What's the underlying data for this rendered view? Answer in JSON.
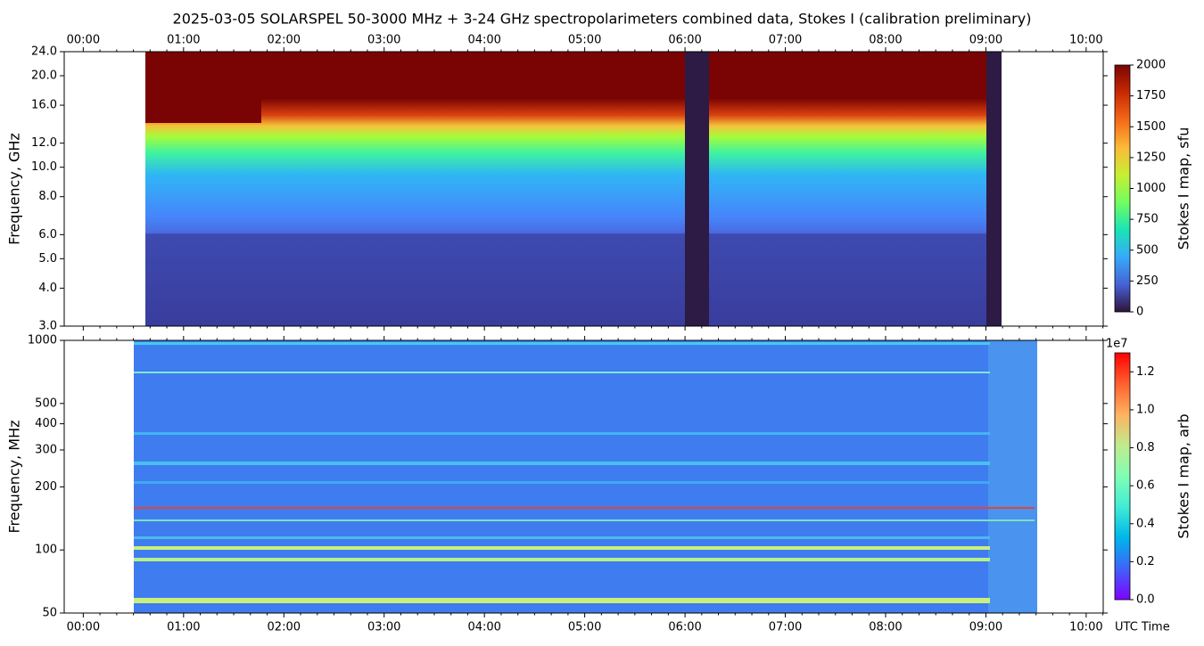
{
  "chart_data": [
    {
      "type": "heatmap",
      "title": "2025-03-05  SOLARSPEL  50-3000 MHz  +  3-24 GHz  spectropolarimeters combined data,  Stokes I  (calibration preliminary)",
      "ylabel": "Frequency, GHz",
      "xlim": [
        -0.19,
        10.17
      ],
      "xticks": [
        {
          "value": 0,
          "label": "00:00"
        },
        {
          "value": 1,
          "label": "01:00"
        },
        {
          "value": 2,
          "label": "02:00"
        },
        {
          "value": 3,
          "label": "03:00"
        },
        {
          "value": 4,
          "label": "04:00"
        },
        {
          "value": 5,
          "label": "05:00"
        },
        {
          "value": 6,
          "label": "06:00"
        },
        {
          "value": 7,
          "label": "07:00"
        },
        {
          "value": 8,
          "label": "08:00"
        },
        {
          "value": 9,
          "label": "09:00"
        },
        {
          "value": 10,
          "label": "10:00"
        }
      ],
      "xtick_labels": "top",
      "yscale": "log",
      "ylim": [
        3,
        24
      ],
      "yticks": [
        {
          "value": 3,
          "label": "3.0"
        },
        {
          "value": 4,
          "label": "4.0"
        },
        {
          "value": 5,
          "label": "5.0"
        },
        {
          "value": 6,
          "label": "6.0"
        },
        {
          "value": 8,
          "label": "8.0"
        },
        {
          "value": 10,
          "label": "10.0"
        },
        {
          "value": 12,
          "label": "12.0"
        },
        {
          "value": 16,
          "label": "16.0"
        },
        {
          "value": 20,
          "label": "20.0"
        },
        {
          "value": 24,
          "label": "24.0"
        }
      ],
      "colorbar": {
        "label": "Stokes I map, sfu",
        "lim": [
          0,
          2000
        ],
        "ticks": [
          0,
          250,
          500,
          750,
          1000,
          1250,
          1500,
          1750,
          2000
        ],
        "colormap": "turbo"
      }
    },
    {
      "type": "heatmap",
      "ylabel": "Frequency, MHz",
      "xlabel": "UTC Time",
      "xlim": [
        -0.19,
        10.17
      ],
      "xticks": [
        {
          "value": 0,
          "label": "00:00"
        },
        {
          "value": 1,
          "label": "01:00"
        },
        {
          "value": 2,
          "label": "02:00"
        },
        {
          "value": 3,
          "label": "03:00"
        },
        {
          "value": 4,
          "label": "04:00"
        },
        {
          "value": 5,
          "label": "05:00"
        },
        {
          "value": 6,
          "label": "06:00"
        },
        {
          "value": 7,
          "label": "07:00"
        },
        {
          "value": 8,
          "label": "08:00"
        },
        {
          "value": 9,
          "label": "09:00"
        },
        {
          "value": 10,
          "label": "10:00"
        }
      ],
      "xtick_labels": "bottom",
      "yscale": "log",
      "ylim": [
        50,
        1000
      ],
      "yticks": [
        50,
        100,
        200,
        300,
        400,
        500,
        1000
      ],
      "colorbar": {
        "label": "Stokes I map, arb",
        "offset_label": "1e7",
        "lim": [
          0,
          1.3
        ],
        "ticks": [
          {
            "value": 0,
            "label": "0.0"
          },
          {
            "value": 0.2,
            "label": "0.2"
          },
          {
            "value": 0.4,
            "label": "0.4"
          },
          {
            "value": 0.6,
            "label": "0.6"
          },
          {
            "value": 0.8,
            "label": "0.8"
          },
          {
            "value": 1,
            "label": "1.0"
          },
          {
            "value": 1.2,
            "label": "1.2"
          }
        ],
        "colormap": "rainbow"
      }
    }
  ]
}
